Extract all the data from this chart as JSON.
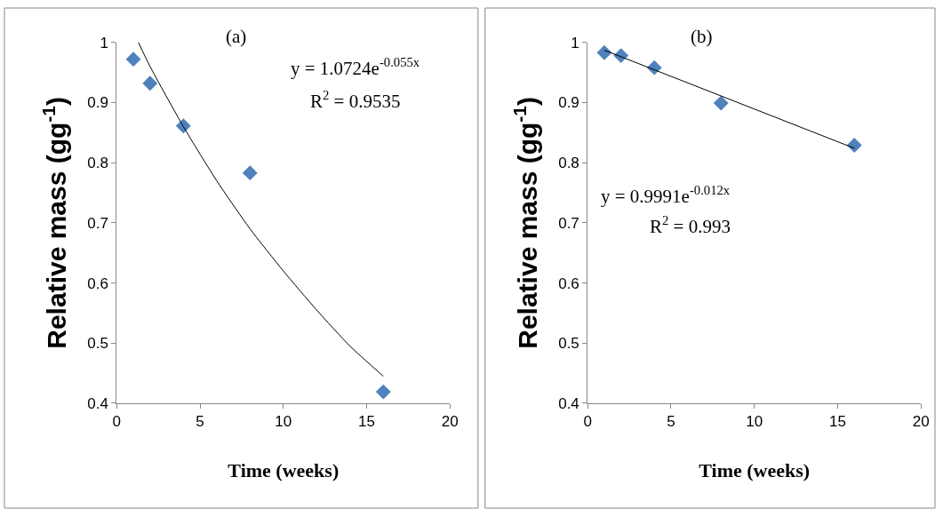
{
  "chart_data": [
    {
      "type": "scatter",
      "xlabel": "Time (weeks)",
      "ylabel": "Relative mass (gg$^{-1}$)",
      "xlim": [
        0,
        20
      ],
      "xticks": [
        0,
        5,
        10,
        15,
        20
      ],
      "ylim": [
        0.4,
        1
      ],
      "yticks": [
        0.4,
        0.5,
        0.6,
        0.7,
        0.8,
        0.9,
        1
      ],
      "marker": "diamond",
      "annotations": [
        "(a)",
        "y = 1.0724e$^{-0.055x}$",
        "R$^{2}$ = 0.9535"
      ],
      "series": [
        {
          "color": "#4f81bd",
          "x": [
            1,
            2,
            4,
            8,
            16
          ],
          "values": [
            0.972,
            0.932,
            0.861,
            0.783,
            0.419
          ]
        },
        {
          "type": "line",
          "marker": "none",
          "color": "#000000",
          "x": [
            1.3,
            2,
            4,
            6,
            8,
            10,
            12,
            14,
            16
          ],
          "values": [
            1.0,
            0.96,
            0.86,
            0.77,
            0.69,
            0.62,
            0.555,
            0.495,
            0.445
          ]
        }
      ]
    },
    {
      "type": "scatter",
      "xlabel": "Time (weeks)",
      "ylabel": "Relative mass (gg$^{-1}$)",
      "xlim": [
        0,
        20
      ],
      "xticks": [
        0,
        5,
        10,
        15,
        20
      ],
      "ylim": [
        0.4,
        1
      ],
      "yticks": [
        0.4,
        0.5,
        0.6,
        0.7,
        0.8,
        0.9,
        1
      ],
      "marker": "diamond",
      "annotations": [
        "(b)",
        "y = 0.9991e$^{-0.012x}$",
        "R$^{2}$ = 0.993"
      ],
      "series": [
        {
          "color": "#4f81bd",
          "x": [
            1,
            2,
            4,
            8,
            16
          ],
          "values": [
            0.983,
            0.978,
            0.958,
            0.899,
            0.829
          ]
        },
        {
          "type": "line",
          "marker": "none",
          "color": "#000000",
          "x": [
            1,
            16
          ],
          "values": [
            0.987,
            0.824
          ]
        }
      ]
    }
  ]
}
